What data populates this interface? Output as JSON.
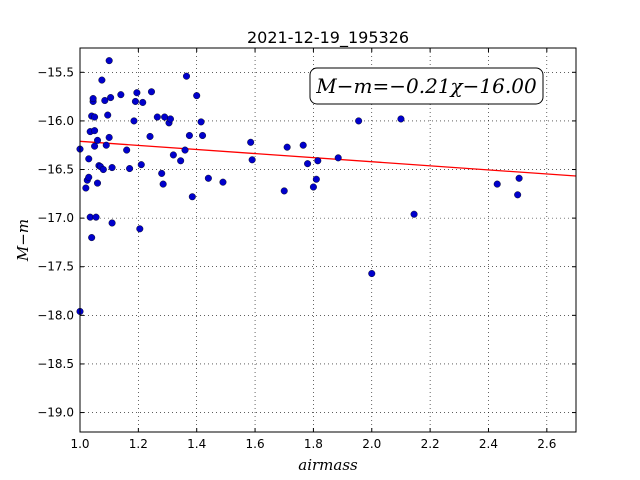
{
  "chart_data": {
    "type": "scatter",
    "title": "2021-12-19_195326",
    "xlabel": "airmass",
    "ylabel": "M−m",
    "xlim": [
      1.0,
      2.7
    ],
    "ylim": [
      -19.2,
      -15.25
    ],
    "y_inverted": true,
    "grid": true,
    "x_ticks": [
      "1.0",
      "1.2",
      "1.4",
      "1.6",
      "1.8",
      "2.0",
      "2.2",
      "2.4",
      "2.6"
    ],
    "y_ticks": [
      "−15.5",
      "−16.0",
      "−16.5",
      "−17.0",
      "−17.5",
      "−18.0",
      "−18.5",
      "−19.0"
    ],
    "annotation": "M−m=−0.21χ−16.00",
    "fit": {
      "slope": -0.21,
      "intercept": -16.0,
      "color": "#ff0000"
    },
    "marker_color": "#0000cc",
    "points": [
      [
        1.0,
        -16.29
      ],
      [
        1.0,
        -17.96
      ],
      [
        1.02,
        -16.69
      ],
      [
        1.025,
        -16.61
      ],
      [
        1.03,
        -16.39
      ],
      [
        1.03,
        -16.58
      ],
      [
        1.035,
        -16.11
      ],
      [
        1.035,
        -16.99
      ],
      [
        1.04,
        -15.95
      ],
      [
        1.04,
        -17.2
      ],
      [
        1.045,
        -15.8
      ],
      [
        1.045,
        -15.77
      ],
      [
        1.05,
        -15.96
      ],
      [
        1.05,
        -16.1
      ],
      [
        1.05,
        -16.26
      ],
      [
        1.055,
        -16.99
      ],
      [
        1.06,
        -16.2
      ],
      [
        1.06,
        -16.64
      ],
      [
        1.065,
        -16.46
      ],
      [
        1.07,
        -16.47
      ],
      [
        1.075,
        -15.58
      ],
      [
        1.08,
        -16.5
      ],
      [
        1.085,
        -15.79
      ],
      [
        1.09,
        -16.25
      ],
      [
        1.095,
        -15.94
      ],
      [
        1.1,
        -16.17
      ],
      [
        1.1,
        -15.38
      ],
      [
        1.105,
        -15.76
      ],
      [
        1.11,
        -16.48
      ],
      [
        1.11,
        -17.05
      ],
      [
        1.14,
        -15.73
      ],
      [
        1.16,
        -16.3
      ],
      [
        1.17,
        -16.49
      ],
      [
        1.185,
        -16.0
      ],
      [
        1.19,
        -15.8
      ],
      [
        1.195,
        -15.71
      ],
      [
        1.205,
        -17.11
      ],
      [
        1.21,
        -16.45
      ],
      [
        1.215,
        -15.81
      ],
      [
        1.24,
        -16.16
      ],
      [
        1.245,
        -15.7
      ],
      [
        1.265,
        -15.96
      ],
      [
        1.28,
        -16.54
      ],
      [
        1.285,
        -16.65
      ],
      [
        1.29,
        -15.96
      ],
      [
        1.305,
        -16.02
      ],
      [
        1.31,
        -15.98
      ],
      [
        1.32,
        -16.35
      ],
      [
        1.345,
        -16.41
      ],
      [
        1.36,
        -16.3
      ],
      [
        1.365,
        -15.54
      ],
      [
        1.375,
        -16.15
      ],
      [
        1.385,
        -16.78
      ],
      [
        1.4,
        -15.74
      ],
      [
        1.415,
        -16.01
      ],
      [
        1.42,
        -16.15
      ],
      [
        1.44,
        -16.59
      ],
      [
        1.49,
        -16.63
      ],
      [
        1.585,
        -16.22
      ],
      [
        1.59,
        -16.4
      ],
      [
        1.7,
        -16.72
      ],
      [
        1.71,
        -16.27
      ],
      [
        1.765,
        -16.25
      ],
      [
        1.78,
        -16.44
      ],
      [
        1.8,
        -16.68
      ],
      [
        1.81,
        -16.6
      ],
      [
        1.815,
        -16.41
      ],
      [
        1.885,
        -16.38
      ],
      [
        1.955,
        -16.0
      ],
      [
        2.0,
        -17.57
      ],
      [
        2.1,
        -15.98
      ],
      [
        2.145,
        -16.96
      ],
      [
        2.43,
        -16.65
      ],
      [
        2.5,
        -16.76
      ],
      [
        2.505,
        -16.59
      ]
    ]
  }
}
